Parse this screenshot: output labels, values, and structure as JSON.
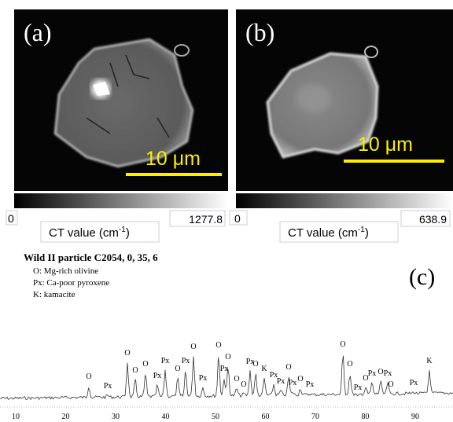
{
  "panel_a": {
    "label": "(a)",
    "scale_bar": "10 μm",
    "colorbar_min": "0",
    "colorbar_max": "1277.8",
    "colorbar_label": "CT value (cm",
    "colorbar_label_sup": "-1",
    "colorbar_label_end": ")"
  },
  "panel_b": {
    "label": "(b)",
    "scale_bar": "10 μm",
    "colorbar_min": "0",
    "colorbar_max": "638.9",
    "colorbar_label": "CT value (cm",
    "colorbar_label_sup": "-1",
    "colorbar_label_end": ")"
  },
  "panel_c": {
    "label": "(c)",
    "title": "Wild II particle C2054, 0, 35, 6",
    "legend": [
      "O: Mg-rich olivine",
      "Px: Ca-poor pyroxene",
      "K: kamacite"
    ],
    "peak_labels": [
      "O",
      "Px",
      "O",
      "O",
      "O",
      "Px",
      "Px",
      "O",
      "Px",
      "O",
      "Px",
      "O",
      "Px",
      "O",
      "O",
      "O",
      "Px",
      "O",
      "K",
      "Px",
      "Px",
      "O",
      "Px",
      "O",
      "Px",
      "O",
      "O",
      "Px",
      "O",
      "Px",
      "O",
      "Px",
      "O",
      "Px",
      "K"
    ],
    "x_ticks": [
      "10",
      "20",
      "30",
      "40",
      "50",
      "60",
      "70",
      "80",
      "90"
    ]
  }
}
